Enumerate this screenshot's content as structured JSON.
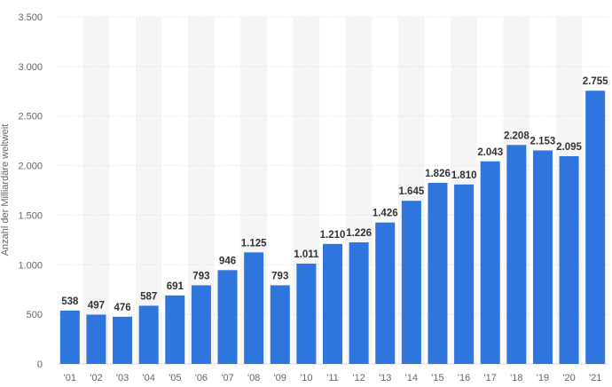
{
  "chart_data": {
    "type": "bar",
    "categories": [
      "'01",
      "'02",
      "'03",
      "'04",
      "'05",
      "'06",
      "'07",
      "'08",
      "'09",
      "'10",
      "'11",
      "'12",
      "'13",
      "'14",
      "'15",
      "'16",
      "'17",
      "'18",
      "'19",
      "'20",
      "'21"
    ],
    "values": [
      538,
      497,
      476,
      587,
      691,
      793,
      946,
      1125,
      793,
      1011,
      1210,
      1226,
      1426,
      1645,
      1826,
      1810,
      2043,
      2208,
      2153,
      2095,
      2755
    ],
    "data_labels": [
      "538",
      "497",
      "476",
      "587",
      "691",
      "793",
      "946",
      "1.125",
      "793",
      "1.011",
      "1.210",
      "1.226",
      "1.426",
      "1.645",
      "1.826",
      "1.810",
      "2.043",
      "2.208",
      "2.153",
      "2.095",
      "2.755"
    ],
    "ylabel": "Anzahl der Milliardäre weltweit",
    "ylim": [
      0,
      3500
    ],
    "y_ticks": [
      0,
      500,
      1000,
      1500,
      2000,
      2500,
      3000,
      3500
    ],
    "y_tick_labels": [
      "0",
      "500",
      "1.000",
      "1.500",
      "2.000",
      "2.500",
      "3.000",
      "3.500"
    ],
    "grid": true,
    "bar_color": "#2e75de",
    "band_color": "#f5f5f5",
    "grid_color": "#d9d9d9"
  }
}
